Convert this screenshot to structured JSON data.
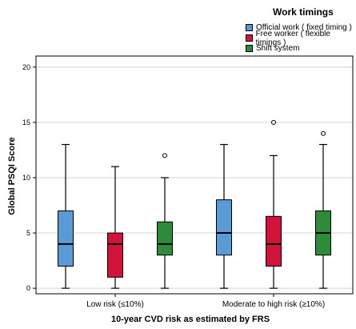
{
  "chart_data": {
    "type": "box",
    "title": "",
    "xlabel": "10-year CVD risk as estimated by FRS",
    "ylabel": "Global PSQI Score",
    "ylim": [
      -0.5,
      21
    ],
    "yticks": [
      0,
      5,
      10,
      15,
      20
    ],
    "grid": true,
    "legend": {
      "title": "Work timings",
      "placement": "top-right"
    },
    "categories": [
      "Low risk (≤10%)",
      "Moderate to high risk (≥10%)"
    ],
    "series": [
      {
        "name": "Official work ( fixed timing )",
        "color": "#5b9bd5",
        "boxes": [
          {
            "min": 0,
            "q1": 2,
            "median": 4,
            "q3": 7,
            "max": 13,
            "outliers": []
          },
          {
            "min": 0,
            "q1": 3,
            "median": 5,
            "q3": 8,
            "max": 13,
            "outliers": []
          }
        ]
      },
      {
        "name": "Free worker ( flexible timings )",
        "color": "#d2143a",
        "boxes": [
          {
            "min": 0,
            "q1": 1,
            "median": 4,
            "q3": 5,
            "max": 11,
            "outliers": []
          },
          {
            "min": 0,
            "q1": 2,
            "median": 4,
            "q3": 6.5,
            "max": 12,
            "outliers": [
              15
            ]
          }
        ]
      },
      {
        "name": "Shift system",
        "color": "#2e8b3a",
        "boxes": [
          {
            "min": 0,
            "q1": 3,
            "median": 4,
            "q3": 6,
            "max": 10,
            "outliers": [
              12
            ]
          },
          {
            "min": 0,
            "q1": 3,
            "median": 5,
            "q3": 7,
            "max": 13,
            "outliers": [
              14
            ]
          }
        ]
      }
    ]
  }
}
